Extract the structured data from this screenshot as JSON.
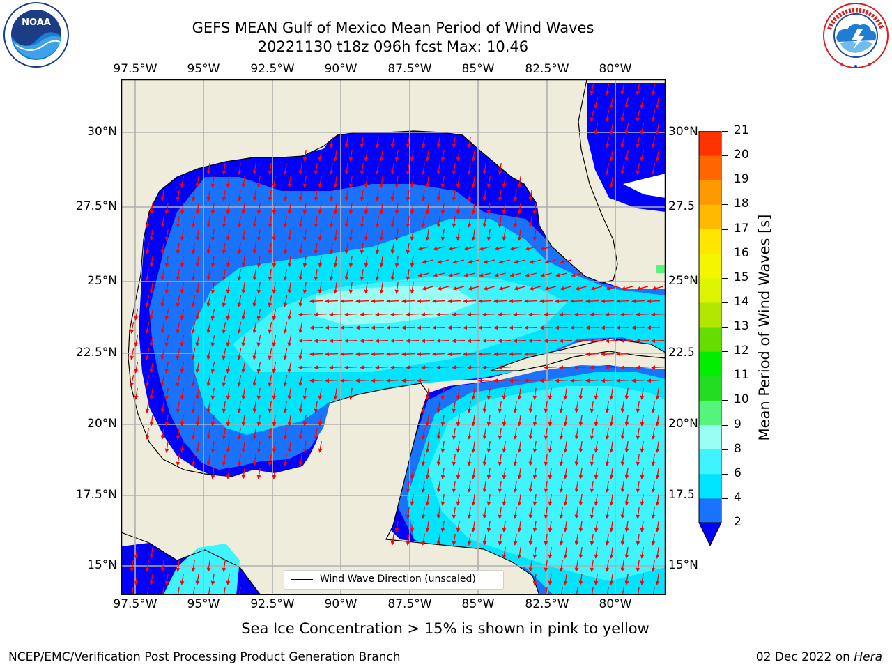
{
  "header": {
    "title_line1": "GEFS MEAN Gulf of Mexico Mean Period of Wind Waves",
    "title_line2": "20221130 t18z 096h fcst   Max: 10.46"
  },
  "logos": {
    "left": {
      "name": "NOAA",
      "text": "NOAA",
      "ring_text_top": "NATIONAL OCEANIC AND ATMOSPHERIC ADMINISTRATION",
      "ring_text_bottom": "U.S. DEPARTMENT OF COMMERCE"
    },
    "right": {
      "name": "National Weather Service",
      "ring_text": "NATIONAL WEATHER SERVICE"
    }
  },
  "map": {
    "lon_labels": [
      "97.5°W",
      "95°W",
      "92.5°W",
      "90°W",
      "87.5°W",
      "85°W",
      "82.5°W",
      "80°W"
    ],
    "lat_labels_left": [
      "30°N",
      "27.5°N",
      "25°N",
      "22.5°N",
      "20°N",
      "17.5°N",
      "15°N"
    ],
    "lat_labels_right": [
      "30°N",
      "27.5",
      "25°N",
      "22.5",
      "20°N",
      "17.5",
      "15°N"
    ],
    "legend_label": "Wind Wave Direction (unscaled)",
    "colors": {
      "land": "#efecdc",
      "no_data": "#ffffff",
      "coast": "#000000",
      "grid": "#b0b0b0",
      "arrow": "#ff0000"
    }
  },
  "colorbar": {
    "title": "Mean Period of Wind Waves [s]",
    "tick_labels": [
      "2",
      "4",
      "6",
      "8",
      "9",
      "10",
      "11",
      "12",
      "13",
      "14",
      "15",
      "16",
      "17",
      "18",
      "19",
      "20",
      "21"
    ],
    "levels": [
      2,
      4,
      6,
      8,
      9,
      10,
      11,
      12,
      13,
      14,
      15,
      16,
      17,
      18,
      19,
      20,
      21
    ],
    "colors": [
      "#1a73ff",
      "#00e5ff",
      "#3ff3ff",
      "#99fff5",
      "#55f57b",
      "#22dd22",
      "#00ee00",
      "#66dd00",
      "#b3e600",
      "#ddf500",
      "#f5f500",
      "#ffe600",
      "#ffbb00",
      "#ff9900",
      "#ff6600",
      "#ff3300",
      "#ff0000"
    ],
    "under_color": "#0000ff"
  },
  "footer": {
    "note": "Sea Ice Concentration > 15% is shown in pink to yellow",
    "credit": "NCEP/EMC/Verification Post Processing Product Generation Branch",
    "date": "02 Dec 2022 on",
    "host": "Hera"
  }
}
